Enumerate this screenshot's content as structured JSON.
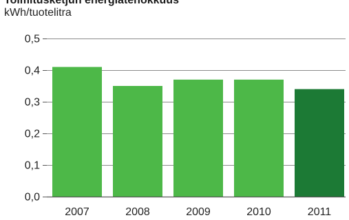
{
  "chart_data": {
    "type": "bar",
    "title": "Toimitusketjun energiatehokkuus",
    "ylabel": "kWh/tuotelitra",
    "xlabel": "",
    "categories": [
      "2007",
      "2008",
      "2009",
      "2010",
      "2011"
    ],
    "values": [
      0.41,
      0.35,
      0.37,
      0.37,
      0.34
    ],
    "ylim": [
      0,
      0.5
    ],
    "yticks": [
      0.0,
      0.1,
      0.2,
      0.3,
      0.4,
      0.5
    ],
    "ytick_labels": [
      "0,0",
      "0,1",
      "0,2",
      "0,3",
      "0,4",
      "0,5"
    ],
    "grid": true,
    "colors": {
      "default_bar": "#4db848",
      "highlight_bar": "#1c7a35"
    },
    "highlight_category": "2011"
  }
}
